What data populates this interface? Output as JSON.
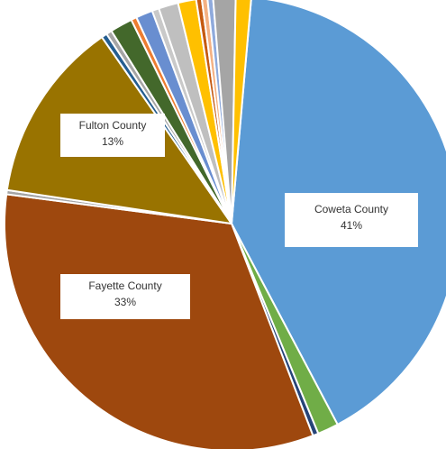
{
  "chart_data": {
    "type": "pie",
    "title": "",
    "slices": [
      {
        "label": "Coweta County",
        "value": 41,
        "color": "#5b9bd5",
        "percent_label": "41%"
      },
      {
        "label": "",
        "value": 1.5,
        "color": "#70ad47"
      },
      {
        "label": "",
        "value": 0.4,
        "color": "#264478"
      },
      {
        "label": "Fayette County",
        "value": 33,
        "color": "#9e480e",
        "percent_label": "33%"
      },
      {
        "label": "",
        "value": 0.3,
        "color": "#a5a5a5"
      },
      {
        "label": "Fulton County",
        "value": 13,
        "color": "#997300",
        "percent_label": "13%"
      },
      {
        "label": "",
        "value": 0.4,
        "color": "#255e91"
      },
      {
        "label": "",
        "value": 0.4,
        "color": "#a5a5a5"
      },
      {
        "label": "",
        "value": 1.6,
        "color": "#43682b"
      },
      {
        "label": "",
        "value": 0.4,
        "color": "#ed7d31"
      },
      {
        "label": "",
        "value": 1.2,
        "color": "#698ed0"
      },
      {
        "label": "",
        "value": 0.5,
        "color": "#c9c9c9"
      },
      {
        "label": "",
        "value": 1.4,
        "color": "#bfbfbf"
      },
      {
        "label": "",
        "value": 1.3,
        "color": "#ffc000"
      },
      {
        "label": "",
        "value": 0.4,
        "color": "#c55a11"
      },
      {
        "label": "",
        "value": 0.4,
        "color": "#f4b183"
      },
      {
        "label": "",
        "value": 0.4,
        "color": "#8faadc"
      },
      {
        "label": "",
        "value": 1.6,
        "color": "#a5a5a5"
      },
      {
        "label": "",
        "value": 1.1,
        "color": "#ffc000"
      }
    ]
  }
}
